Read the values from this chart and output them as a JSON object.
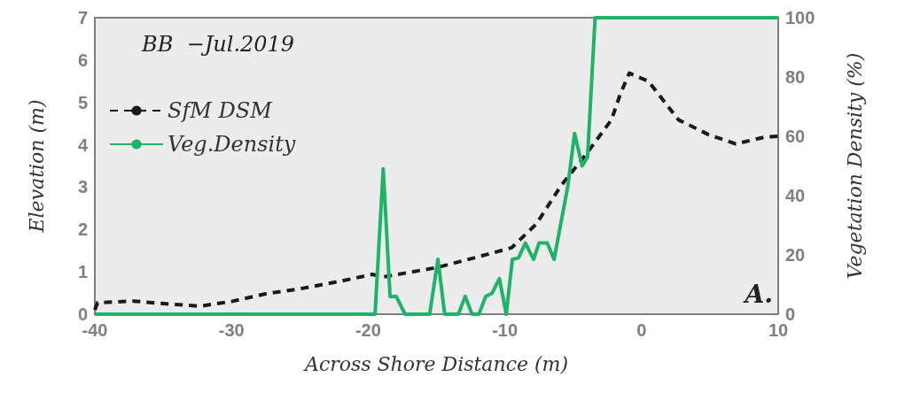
{
  "chart_data": {
    "type": "line",
    "xlabel": "Across Shore Distance (m)",
    "ylabel": "Elevation (m)",
    "y2label": "Vegetation Density (%)",
    "annotations": [
      "BB  −Jul.2019",
      "A."
    ],
    "xlim": [
      -40,
      10
    ],
    "xticks": [
      -40,
      -30,
      -20,
      -10,
      0,
      10
    ],
    "ylim": [
      0,
      7
    ],
    "yticks": [
      0,
      1,
      2,
      3,
      4,
      5,
      6,
      7
    ],
    "y2lim": [
      0,
      100
    ],
    "y2ticks": [
      0,
      20,
      40,
      60,
      80,
      100
    ],
    "grid": false,
    "legend": "top left",
    "marker": "none",
    "series": [
      {
        "name": "SfM DSM",
        "color": "#1a1a1a",
        "line_style": "dashed",
        "x": [
          -40,
          -39.8,
          -37.2,
          -35,
          -32.3,
          -30,
          -27.5,
          -25,
          -22,
          -19.7,
          -18.9,
          -15,
          -12,
          -9.5,
          -7.7,
          -5.9,
          -4,
          -2.2,
          -1.55,
          -0.9,
          0.5,
          2.7,
          4.9,
          6.9,
          9,
          10
        ],
        "values": [
          0.1,
          0.27,
          0.31,
          0.25,
          0.19,
          0.3,
          0.48,
          0.6,
          0.78,
          0.94,
          0.88,
          1.1,
          1.35,
          1.57,
          2.13,
          3.03,
          3.8,
          4.59,
          5.2,
          5.69,
          5.5,
          4.59,
          4.24,
          4.02,
          4.18,
          4.2
        ]
      },
      {
        "name": "Veg.Density",
        "color": "#1fb36a",
        "line_style": "solid",
        "axis": "y2",
        "x": [
          -40,
          -19.5,
          -18.9,
          -18.4,
          -17.95,
          -17.3,
          -15.5,
          -14.9,
          -14.4,
          -13.4,
          -12.9,
          -12.4,
          -11.9,
          -11.4,
          -10.95,
          -10.4,
          -9.9,
          -9.45,
          -9.0,
          -8.5,
          -7.9,
          -7.5,
          -6.9,
          -6.4,
          -5.4,
          -4.9,
          -4.35,
          -3.95,
          -3.4,
          10
        ],
        "values": [
          0,
          0,
          49,
          6,
          6,
          0,
          0,
          18.5,
          0,
          0,
          6,
          0,
          0,
          6,
          7,
          12,
          0,
          18.5,
          19,
          24,
          18.5,
          24,
          24,
          18.5,
          43,
          61,
          50,
          53,
          100,
          100
        ]
      }
    ]
  }
}
